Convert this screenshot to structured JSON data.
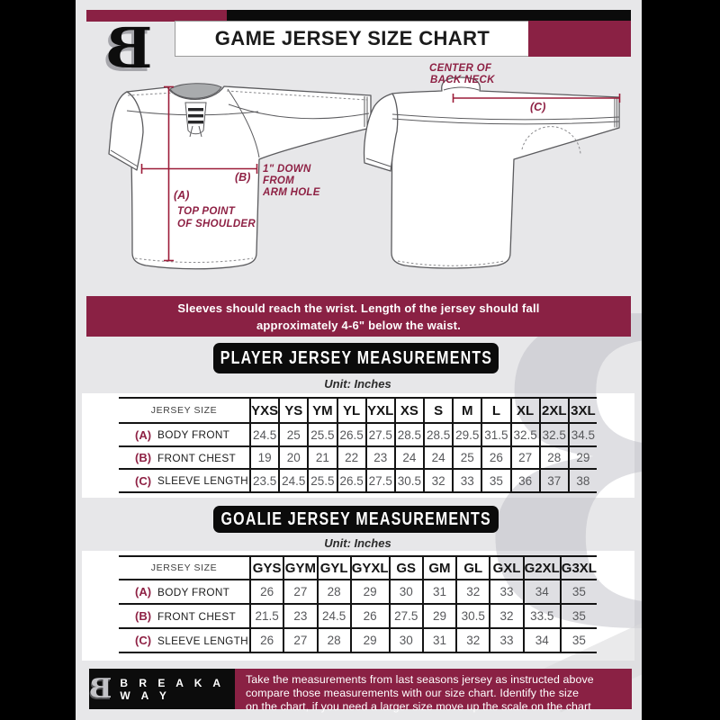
{
  "colors": {
    "maroon": "#8A2144",
    "banner_black": "#0b0b0b",
    "content_bg": "#e7e7e9",
    "outside_bg": "#000000",
    "table_line": "#141414",
    "value_gray": "#57585b",
    "measure_line": "#9c1c38",
    "watermark_gray": "#d9d9db"
  },
  "header": {
    "title": "GAME JERSEY SIZE CHART",
    "logo_letter": "B"
  },
  "diagram": {
    "front": {
      "label_a": "(A)",
      "note_a_line1": "TOP POINT",
      "note_a_line2": "OF SHOULDER",
      "label_b": "(B)",
      "note_b_line1": "1\" DOWN",
      "note_b_line2": "FROM",
      "note_b_line3": "ARM HOLE"
    },
    "back": {
      "label_c": "(C)",
      "note_c_line1": "CENTER OF",
      "note_c_line2": "BACK NECK"
    }
  },
  "notice": {
    "line1": "Sleeves should reach the wrist. Length of the jersey should fall",
    "line2": "approximately 4-6\" below the waist."
  },
  "player": {
    "banner": "PLAYER JERSEY MEASUREMENTS",
    "unit": "Unit: Inches",
    "corner": "JERSEY SIZE",
    "sizes": [
      "YXS",
      "YS",
      "YM",
      "YL",
      "YXL",
      "XS",
      "S",
      "M",
      "L",
      "XL",
      "2XL",
      "3XL"
    ],
    "rows": [
      {
        "key": "(A)",
        "label": "BODY FRONT",
        "values": [
          "24.5",
          "25",
          "25.5",
          "26.5",
          "27.5",
          "28.5",
          "28.5",
          "29.5",
          "31.5",
          "32.5",
          "32.5",
          "34.5"
        ]
      },
      {
        "key": "(B)",
        "label": "FRONT CHEST",
        "values": [
          "19",
          "20",
          "21",
          "22",
          "23",
          "24",
          "24",
          "25",
          "26",
          "27",
          "28",
          "29"
        ]
      },
      {
        "key": "(C)",
        "label": "SLEEVE LENGTH",
        "values": [
          "23.5",
          "24.5",
          "25.5",
          "26.5",
          "27.5",
          "30.5",
          "32",
          "33",
          "35",
          "36",
          "37",
          "38"
        ]
      }
    ]
  },
  "goalie": {
    "banner": "GOALIE JERSEY MEASUREMENTS",
    "unit": "Unit: Inches",
    "corner": "JERSEY SIZE",
    "sizes": [
      "GYS",
      "GYM",
      "GYL",
      "GYXL",
      "GS",
      "GM",
      "GL",
      "GXL",
      "G2XL",
      "G3XL"
    ],
    "rows": [
      {
        "key": "(A)",
        "label": "BODY FRONT",
        "values": [
          "26",
          "27",
          "28",
          "29",
          "30",
          "31",
          "32",
          "33",
          "34",
          "35"
        ]
      },
      {
        "key": "(B)",
        "label": "FRONT CHEST",
        "values": [
          "21.5",
          "23",
          "24.5",
          "26",
          "27.5",
          "29",
          "30.5",
          "32",
          "33.5",
          "35"
        ]
      },
      {
        "key": "(C)",
        "label": "SLEEVE LENGTH",
        "values": [
          "26",
          "27",
          "28",
          "29",
          "30",
          "31",
          "32",
          "33",
          "34",
          "35"
        ]
      }
    ]
  },
  "footer": {
    "logo_letter": "B",
    "brand": "B R E A K A W A Y",
    "line1": "Take the measurements from last seasons jersey as instructed above",
    "line2": "compare those measurements  with our size chart. Identify the size",
    "line3": "on the chart, if you need a larger size move up the scale on the chart"
  }
}
